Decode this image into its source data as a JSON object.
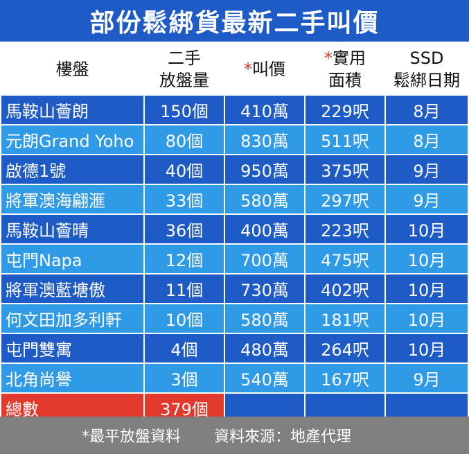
{
  "title": "部份鬆綁貨最新二手叫價",
  "headers": [
    {
      "line1": "樓盤",
      "line2": "",
      "star": ""
    },
    {
      "line1": "二手",
      "line2": "放盤量",
      "star": ""
    },
    {
      "line1": "叫價",
      "line2": "",
      "star": "*"
    },
    {
      "line1": "實用",
      "line2": "面積",
      "star": "*"
    },
    {
      "line1": "SSD",
      "line2": "鬆綁日期",
      "star": ""
    }
  ],
  "rows": [
    {
      "estate": "馬鞍山薈朗",
      "listings": "150個",
      "price": "410萬",
      "area": "229呎",
      "ssd": "8月"
    },
    {
      "estate": "元朗Grand Yoho",
      "listings": "80個",
      "price": "830萬",
      "area": "511呎",
      "ssd": "8月"
    },
    {
      "estate": "啟德1號",
      "listings": "40個",
      "price": "950萬",
      "area": "375呎",
      "ssd": "9月"
    },
    {
      "estate": "將軍澳海翩滙",
      "listings": "33個",
      "price": "580萬",
      "area": "297呎",
      "ssd": "9月"
    },
    {
      "estate": "馬鞍山薈晴",
      "listings": "36個",
      "price": "400萬",
      "area": "223呎",
      "ssd": "10月"
    },
    {
      "estate": "屯門Napa",
      "listings": "12個",
      "price": "700萬",
      "area": "475呎",
      "ssd": "10月"
    },
    {
      "estate": "將軍澳藍塘傲",
      "listings": "11個",
      "price": "730萬",
      "area": "402呎",
      "ssd": "10月"
    },
    {
      "estate": "何文田加多利軒",
      "listings": "10個",
      "price": "580萬",
      "area": "181呎",
      "ssd": "10月"
    },
    {
      "estate": "屯門雙寓",
      "listings": "4個",
      "price": "480萬",
      "area": "264呎",
      "ssd": "10月"
    },
    {
      "estate": "北角尚譽",
      "listings": "3個",
      "price": "540萬",
      "area": "167呎",
      "ssd": "9月"
    }
  ],
  "total": {
    "label": "總數",
    "listings": "379個"
  },
  "footer": {
    "note": "*最平放盤資料",
    "source": "資料來源：地產代理"
  },
  "colors": {
    "dark_blue": "#1e5bc6",
    "light_blue": "#2f9be7",
    "red": "#e3392d",
    "gray": "#808080"
  }
}
